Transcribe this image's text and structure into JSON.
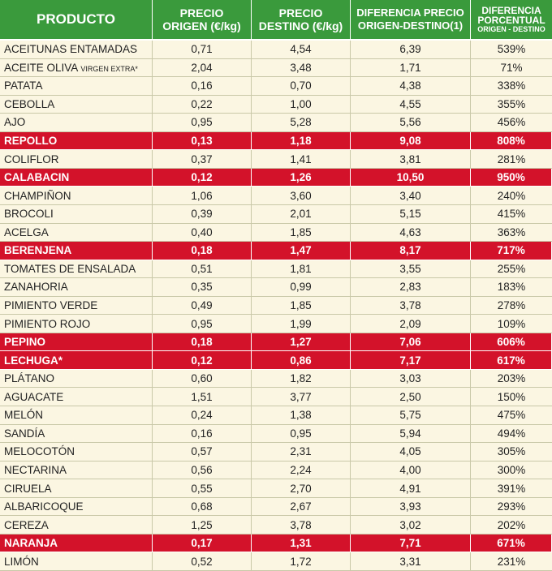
{
  "table": {
    "header": [
      {
        "lines": [
          "PRODUCTO"
        ]
      },
      {
        "lines": [
          "PRECIO",
          "ORIGEN (€/kg)"
        ]
      },
      {
        "lines": [
          "PRECIO",
          "DESTINO (€/kg)"
        ]
      },
      {
        "lines": [
          "DIFERENCIA PRECIO",
          "ORIGEN-DESTINO(1)"
        ]
      },
      {
        "lines": [
          "DIFERENCIA",
          "PORCENTUAL"
        ],
        "small": "ORIGEN - DESTINO"
      }
    ],
    "rows": [
      {
        "cells": [
          "ACEITUNAS ENTAMADAS",
          "0,71",
          "4,54",
          "6,39",
          "539%"
        ],
        "highlight": false
      },
      {
        "cells": [
          {
            "text": "ACEITE OLIVA",
            "small": "VIRGEN EXTRA*"
          },
          "2,04",
          "3,48",
          "1,71",
          "71%"
        ],
        "highlight": false
      },
      {
        "cells": [
          "PATATA",
          "0,16",
          "0,70",
          "4,38",
          "338%"
        ],
        "highlight": false
      },
      {
        "cells": [
          "CEBOLLA",
          "0,22",
          "1,00",
          "4,55",
          "355%"
        ],
        "highlight": false
      },
      {
        "cells": [
          "AJO",
          "0,95",
          "5,28",
          "5,56",
          "456%"
        ],
        "highlight": false
      },
      {
        "cells": [
          "REPOLLO",
          "0,13",
          "1,18",
          "9,08",
          "808%"
        ],
        "highlight": true
      },
      {
        "cells": [
          "COLIFLOR",
          "0,37",
          "1,41",
          "3,81",
          "281%"
        ],
        "highlight": false
      },
      {
        "cells": [
          "CALABACIN",
          "0,12",
          "1,26",
          "10,50",
          "950%"
        ],
        "highlight": true
      },
      {
        "cells": [
          "CHAMPIÑON",
          "1,06",
          "3,60",
          "3,40",
          "240%"
        ],
        "highlight": false
      },
      {
        "cells": [
          "BROCOLI",
          "0,39",
          "2,01",
          "5,15",
          "415%"
        ],
        "highlight": false
      },
      {
        "cells": [
          "ACELGA",
          "0,40",
          "1,85",
          "4,63",
          "363%"
        ],
        "highlight": false
      },
      {
        "cells": [
          "BERENJENA",
          "0,18",
          "1,47",
          "8,17",
          "717%"
        ],
        "highlight": true
      },
      {
        "cells": [
          "TOMATES DE ENSALADA",
          "0,51",
          "1,81",
          "3,55",
          "255%"
        ],
        "highlight": false
      },
      {
        "cells": [
          "ZANAHORIA",
          "0,35",
          "0,99",
          "2,83",
          "183%"
        ],
        "highlight": false
      },
      {
        "cells": [
          "PIMIENTO VERDE",
          "0,49",
          "1,85",
          "3,78",
          "278%"
        ],
        "highlight": false
      },
      {
        "cells": [
          "PIMIENTO ROJO",
          "0,95",
          "1,99",
          "2,09",
          "109%"
        ],
        "highlight": false
      },
      {
        "cells": [
          "PEPINO",
          "0,18",
          "1,27",
          "7,06",
          "606%"
        ],
        "highlight": true
      },
      {
        "cells": [
          "LECHUGA*",
          "0,12",
          "0,86",
          "7,17",
          "617%"
        ],
        "highlight": true
      },
      {
        "cells": [
          "PLÁTANO",
          "0,60",
          "1,82",
          "3,03",
          "203%"
        ],
        "highlight": false
      },
      {
        "cells": [
          "AGUACATE",
          "1,51",
          "3,77",
          "2,50",
          "150%"
        ],
        "highlight": false
      },
      {
        "cells": [
          "MELÓN",
          "0,24",
          "1,38",
          "5,75",
          "475%"
        ],
        "highlight": false
      },
      {
        "cells": [
          "SANDÍA",
          "0,16",
          "0,95",
          "5,94",
          "494%"
        ],
        "highlight": false
      },
      {
        "cells": [
          "MELOCOTÓN",
          "0,57",
          "2,31",
          "4,05",
          "305%"
        ],
        "highlight": false
      },
      {
        "cells": [
          "NECTARINA",
          "0,56",
          "2,24",
          "4,00",
          "300%"
        ],
        "highlight": false
      },
      {
        "cells": [
          "CIRUELA",
          "0,55",
          "2,70",
          "4,91",
          "391%"
        ],
        "highlight": false
      },
      {
        "cells": [
          "ALBARICOQUE",
          "0,68",
          "2,67",
          "3,93",
          "293%"
        ],
        "highlight": false
      },
      {
        "cells": [
          "CEREZA",
          "1,25",
          "3,78",
          "3,02",
          "202%"
        ],
        "highlight": false
      },
      {
        "cells": [
          "NARANJA",
          "0,17",
          "1,31",
          "7,71",
          "671%"
        ],
        "highlight": true
      },
      {
        "cells": [
          "LIMÓN",
          "0,52",
          "1,72",
          "3,31",
          "231%"
        ],
        "highlight": false
      }
    ]
  }
}
